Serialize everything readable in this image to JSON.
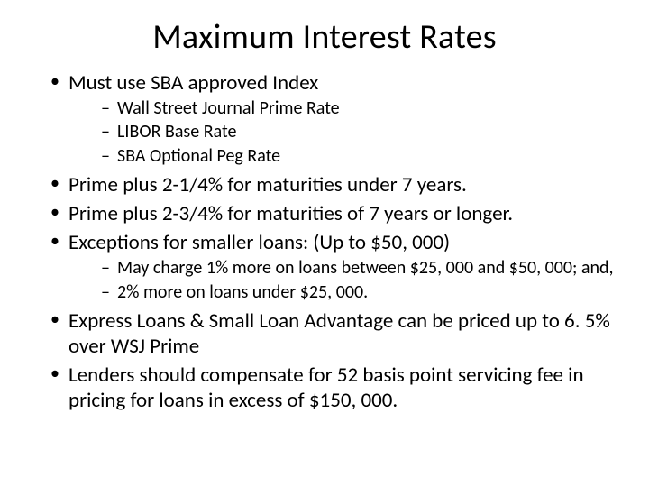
{
  "title": "Maximum Interest Rates",
  "bullets": [
    {
      "text": "Must use SBA approved Index",
      "sub": [
        "Wall Street Journal Prime Rate",
        "LIBOR Base Rate",
        "SBA Optional Peg Rate"
      ]
    },
    {
      "text": "Prime plus 2-1/4% for maturities under 7 years."
    },
    {
      "text": "Prime plus 2-3/4% for maturities of 7 years or longer."
    },
    {
      "text": "Exceptions for smaller loans: (Up to $50, 000)",
      "sub": [
        "May charge 1% more on loans between $25, 000 and $50, 000; and,",
        "2% more on loans under $25, 000."
      ]
    },
    {
      "text": "Express Loans  &  Small Loan Advantage can be priced up to 6. 5% over WSJ Prime"
    },
    {
      "text": "Lenders should compensate for 52 basis point servicing fee in pricing for loans in excess of $150, 000."
    }
  ],
  "colors": {
    "background": "#ffffff",
    "text": "#000000"
  },
  "typography": {
    "title_fontsize": 38,
    "level1_fontsize": 23,
    "level2_fontsize": 20,
    "font_family": "Calibri"
  }
}
